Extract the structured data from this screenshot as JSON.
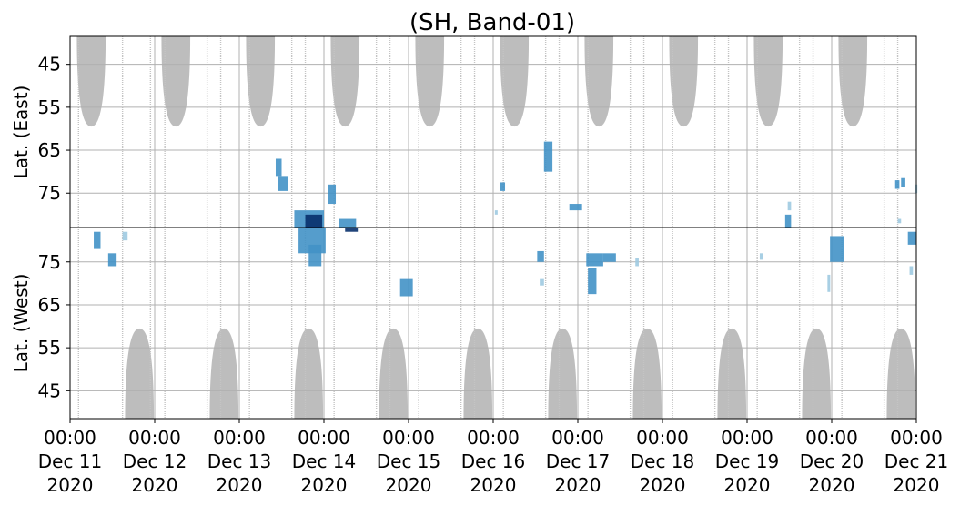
{
  "chart_data": {
    "type": "heatmap",
    "title": "(SH, Band-01)",
    "panels": [
      {
        "name": "east",
        "ylabel": "Lat. (East)",
        "ylim": [
          38.5,
          83
        ],
        "inverted": true,
        "yticks": [
          45,
          55,
          65,
          75
        ],
        "ytick_labels": [
          "45",
          "55",
          "65",
          "75"
        ]
      },
      {
        "name": "west",
        "ylabel": "Lat. (West)",
        "ylim": [
          38.5,
          83
        ],
        "inverted": false,
        "yticks": [
          75,
          65,
          55,
          45
        ],
        "ytick_labels": [
          "75",
          "65",
          "55",
          "45"
        ]
      }
    ],
    "xlim": [
      0,
      10
    ],
    "x_unit": "days since 00:00 Dec 11 2020",
    "xticks": [
      {
        "time": "00:00",
        "date": "Dec 11",
        "year": "2020"
      },
      {
        "time": "00:00",
        "date": "Dec 12",
        "year": "2020"
      },
      {
        "time": "00:00",
        "date": "Dec 13",
        "year": "2020"
      },
      {
        "time": "00:00",
        "date": "Dec 14",
        "year": "2020"
      },
      {
        "time": "00:00",
        "date": "Dec 15",
        "year": "2020"
      },
      {
        "time": "00:00",
        "date": "Dec 16",
        "year": "2020"
      },
      {
        "time": "00:00",
        "date": "Dec 17",
        "year": "2020"
      },
      {
        "time": "00:00",
        "date": "Dec 18",
        "year": "2020"
      },
      {
        "time": "00:00",
        "date": "Dec 19",
        "year": "2020"
      },
      {
        "time": "00:00",
        "date": "Dec 20",
        "year": "2020"
      },
      {
        "time": "00:00",
        "date": "Dec 21",
        "year": "2020"
      }
    ],
    "grid": true,
    "colors": {
      "intensity_low": "#9ecae1",
      "intensity_mid": "#4292c6",
      "intensity_high": "#08306b",
      "no_data": "#bdbdbd",
      "grid": "#b0b0b0"
    },
    "no_data_east": [
      {
        "center": 0.25,
        "half_width": 0.17,
        "lat_min": 38.5,
        "lat_max": 59.5
      },
      {
        "center": 1.25,
        "half_width": 0.17,
        "lat_min": 38.5,
        "lat_max": 59.5
      },
      {
        "center": 2.25,
        "half_width": 0.17,
        "lat_min": 38.5,
        "lat_max": 59.5
      },
      {
        "center": 3.25,
        "half_width": 0.17,
        "lat_min": 38.5,
        "lat_max": 59.5
      },
      {
        "center": 4.25,
        "half_width": 0.17,
        "lat_min": 38.5,
        "lat_max": 59.5
      },
      {
        "center": 5.25,
        "half_width": 0.17,
        "lat_min": 38.5,
        "lat_max": 59.5
      },
      {
        "center": 6.25,
        "half_width": 0.17,
        "lat_min": 38.5,
        "lat_max": 59.5
      },
      {
        "center": 7.25,
        "half_width": 0.17,
        "lat_min": 38.5,
        "lat_max": 59.5
      },
      {
        "center": 8.25,
        "half_width": 0.17,
        "lat_min": 38.5,
        "lat_max": 59.5
      },
      {
        "center": 9.25,
        "half_width": 0.17,
        "lat_min": 38.5,
        "lat_max": 59.5
      }
    ],
    "no_data_west": [
      {
        "center": 0.82,
        "half_width": 0.17,
        "lat_min": 38.5,
        "lat_max": 59.5
      },
      {
        "center": 1.82,
        "half_width": 0.17,
        "lat_min": 38.5,
        "lat_max": 59.5
      },
      {
        "center": 2.82,
        "half_width": 0.17,
        "lat_min": 38.5,
        "lat_max": 59.5
      },
      {
        "center": 3.82,
        "half_width": 0.17,
        "lat_min": 38.5,
        "lat_max": 59.5
      },
      {
        "center": 4.82,
        "half_width": 0.17,
        "lat_min": 38.5,
        "lat_max": 59.5
      },
      {
        "center": 5.82,
        "half_width": 0.17,
        "lat_min": 38.5,
        "lat_max": 59.5
      },
      {
        "center": 6.82,
        "half_width": 0.17,
        "lat_min": 38.5,
        "lat_max": 59.5
      },
      {
        "center": 7.82,
        "half_width": 0.17,
        "lat_min": 38.5,
        "lat_max": 59.5
      },
      {
        "center": 8.82,
        "half_width": 0.17,
        "lat_min": 38.5,
        "lat_max": 59.5
      },
      {
        "center": 9.82,
        "half_width": 0.17,
        "lat_min": 38.5,
        "lat_max": 59.5
      }
    ],
    "coverage_lines": [
      0.1,
      0.62,
      0.95,
      1.12,
      1.62,
      1.78,
      2.12,
      2.62,
      2.78,
      3.12,
      3.62,
      3.78,
      4.12,
      4.62,
      4.78,
      5.12,
      5.62,
      5.78,
      6.12,
      6.62,
      6.78,
      7.12,
      7.62,
      7.78,
      8.12,
      8.62,
      8.78,
      9.12,
      9.62,
      9.78
    ],
    "events": [
      {
        "panel": "west",
        "t0": 0.28,
        "t1": 0.36,
        "lat0": 78,
        "lat1": 82,
        "level": 2
      },
      {
        "panel": "west",
        "t0": 0.45,
        "t1": 0.55,
        "lat0": 74,
        "lat1": 77,
        "level": 2
      },
      {
        "panel": "west",
        "t0": 0.62,
        "t1": 0.68,
        "lat0": 80,
        "lat1": 82,
        "level": 1
      },
      {
        "panel": "east",
        "t0": 2.43,
        "t1": 2.5,
        "lat0": 67,
        "lat1": 71,
        "level": 2
      },
      {
        "panel": "east",
        "t0": 2.46,
        "t1": 2.57,
        "lat0": 71,
        "lat1": 74.5,
        "level": 2
      },
      {
        "panel": "east",
        "t0": 2.65,
        "t1": 3.0,
        "lat0": 79,
        "lat1": 83,
        "level": 2
      },
      {
        "panel": "east",
        "t0": 2.78,
        "t1": 2.98,
        "lat0": 80,
        "lat1": 83,
        "level": 3
      },
      {
        "panel": "west",
        "t0": 2.7,
        "t1": 3.02,
        "lat0": 77,
        "lat1": 83,
        "level": 2
      },
      {
        "panel": "west",
        "t0": 2.82,
        "t1": 2.97,
        "lat0": 74,
        "lat1": 79,
        "level": 2
      },
      {
        "panel": "east",
        "t0": 3.05,
        "t1": 3.14,
        "lat0": 73,
        "lat1": 77.5,
        "level": 2
      },
      {
        "panel": "east",
        "t0": 3.18,
        "t1": 3.38,
        "lat0": 81,
        "lat1": 83,
        "level": 2
      },
      {
        "panel": "west",
        "t0": 3.25,
        "t1": 3.4,
        "lat0": 82,
        "lat1": 83,
        "level": 3
      },
      {
        "panel": "west",
        "t0": 3.9,
        "t1": 4.05,
        "lat0": 67,
        "lat1": 71,
        "level": 2
      },
      {
        "panel": "east",
        "t0": 5.08,
        "t1": 5.14,
        "lat0": 72.5,
        "lat1": 74.5,
        "level": 2
      },
      {
        "panel": "east",
        "t0": 5.02,
        "t1": 5.05,
        "lat0": 79,
        "lat1": 80,
        "level": 1
      },
      {
        "panel": "west",
        "t0": 5.52,
        "t1": 5.6,
        "lat0": 75,
        "lat1": 77.5,
        "level": 2
      },
      {
        "panel": "west",
        "t0": 5.55,
        "t1": 5.6,
        "lat0": 69.5,
        "lat1": 71,
        "level": 1
      },
      {
        "panel": "east",
        "t0": 5.6,
        "t1": 5.7,
        "lat0": 63,
        "lat1": 70,
        "level": 2
      },
      {
        "panel": "east",
        "t0": 5.9,
        "t1": 6.05,
        "lat0": 77.5,
        "lat1": 79,
        "level": 2
      },
      {
        "panel": "west",
        "t0": 6.1,
        "t1": 6.3,
        "lat0": 74,
        "lat1": 77,
        "level": 2
      },
      {
        "panel": "west",
        "t0": 6.12,
        "t1": 6.22,
        "lat0": 67.5,
        "lat1": 73.5,
        "level": 2
      },
      {
        "panel": "west",
        "t0": 6.3,
        "t1": 6.45,
        "lat0": 75,
        "lat1": 77,
        "level": 2
      },
      {
        "panel": "west",
        "t0": 6.68,
        "t1": 6.72,
        "lat0": 74,
        "lat1": 76,
        "level": 1
      },
      {
        "panel": "east",
        "t0": 8.45,
        "t1": 8.52,
        "lat0": 80,
        "lat1": 83,
        "level": 2
      },
      {
        "panel": "east",
        "t0": 8.48,
        "t1": 8.52,
        "lat0": 77,
        "lat1": 79,
        "level": 1
      },
      {
        "panel": "west",
        "t0": 8.15,
        "t1": 8.19,
        "lat0": 75.5,
        "lat1": 77,
        "level": 1
      },
      {
        "panel": "west",
        "t0": 8.98,
        "t1": 9.15,
        "lat0": 75,
        "lat1": 81,
        "level": 2
      },
      {
        "panel": "west",
        "t0": 8.95,
        "t1": 8.98,
        "lat0": 68,
        "lat1": 72,
        "level": 1
      },
      {
        "panel": "east",
        "t0": 9.75,
        "t1": 9.8,
        "lat0": 72,
        "lat1": 74,
        "level": 2
      },
      {
        "panel": "east",
        "t0": 9.82,
        "t1": 9.87,
        "lat0": 71.5,
        "lat1": 73.5,
        "level": 2
      },
      {
        "panel": "east",
        "t0": 9.78,
        "t1": 9.82,
        "lat0": 81,
        "lat1": 82,
        "level": 1
      },
      {
        "panel": "west",
        "t0": 9.9,
        "t1": 10.0,
        "lat0": 79,
        "lat1": 82,
        "level": 2
      },
      {
        "panel": "west",
        "t0": 9.92,
        "t1": 9.96,
        "lat0": 72,
        "lat1": 74,
        "level": 1
      },
      {
        "panel": "east",
        "t0": 9.98,
        "t1": 10.0,
        "lat0": 73,
        "lat1": 75,
        "level": 1
      }
    ]
  }
}
